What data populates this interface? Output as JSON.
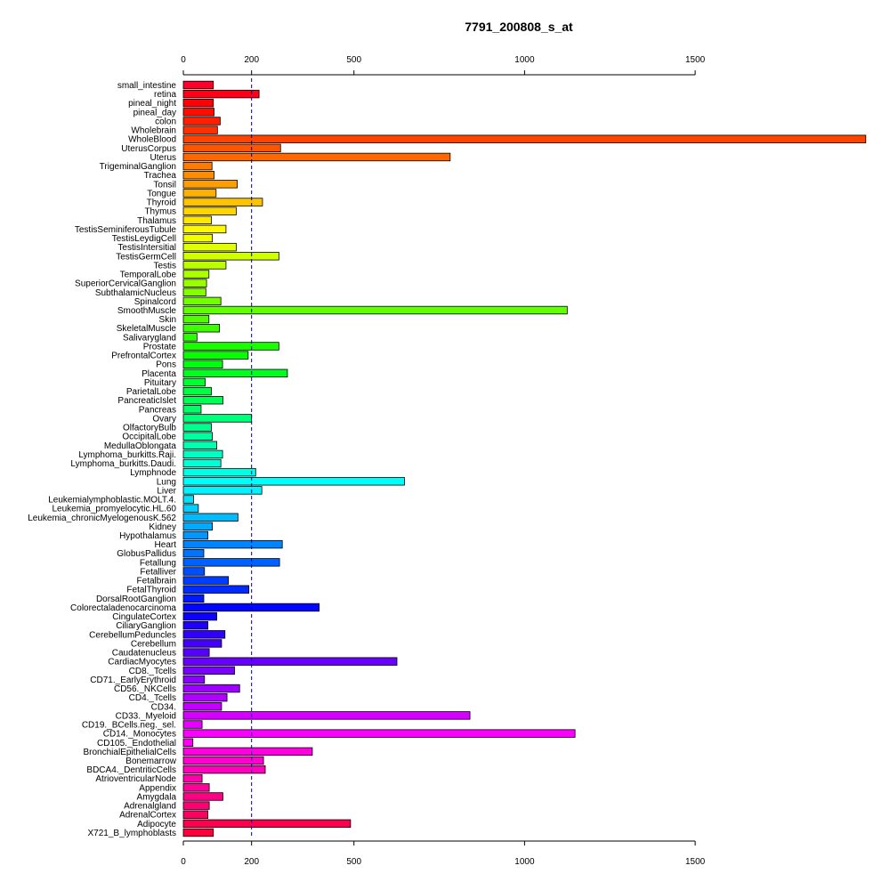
{
  "chart_data": {
    "type": "bar",
    "orientation": "horizontal",
    "title": "7791_200808_s_at",
    "xlim": [
      0,
      2000
    ],
    "xticks": [
      0,
      200,
      500,
      1000,
      1500
    ],
    "reference_line": 200,
    "categories": [
      "small_intestine",
      "retina",
      "pineal_night",
      "pineal_day",
      "colon",
      "Wholebrain",
      "WholeBlood",
      "UterusCorpus",
      "Uterus",
      "TrigeminalGanglion",
      "Trachea",
      "Tonsil",
      "Tongue",
      "Thyroid",
      "Thymus",
      "Thalamus",
      "TestisSeminiferousTubule",
      "TestisLeydigCell",
      "TestisIntersitial",
      "TestisGermCell",
      "Testis",
      "TemporalLobe",
      "SuperiorCervicalGanglion",
      "SubthalamicNucleus",
      "Spinalcord",
      "SmoothMuscle",
      "Skin",
      "SkeletalMuscle",
      "Salivarygland",
      "Prostate",
      "PrefrontalCortex",
      "Pons",
      "Placenta",
      "Pituitary",
      "ParietalLobe",
      "PancreaticIslet",
      "Pancreas",
      "Ovary",
      "OlfactoryBulb",
      "OccipitalLobe",
      "MedullaOblongata",
      "Lymphoma_burkitts.Raji.",
      "Lymphoma_burkitts.Daudi.",
      "Lymphnode",
      "Lung",
      "Liver",
      "Leukemialymphoblastic.MOLT.4.",
      "Leukemia_promyelocytic.HL.60",
      "Leukemia_chronicMyelogenousK.562",
      "Kidney",
      "Hypothalamus",
      "Heart",
      "GlobusPallidus",
      "Fetallung",
      "Fetalliver",
      "Fetalbrain",
      "FetalThyroid",
      "DorsalRootGanglion",
      "Colorectaladenocarcinoma",
      "CingulateCortex",
      "CiliaryGanglion",
      "CerebellumPeduncles",
      "Cerebellum",
      "Caudatenucleus",
      "CardiacMyocytes",
      "CD8._Tcells",
      "CD71._EarlyErythroid",
      "CD56._NKCells",
      "CD4._Tcells",
      "CD34.",
      "CD33._Myeloid",
      "CD19._BCells.neg._sel.",
      "CD14._Monocytes",
      "CD105._Endothelial",
      "BronchialEpithelialCells",
      "Bonemarrow",
      "BDCA4._DentriticCells",
      "AtrioventricularNode",
      "Appendix",
      "Amygdala",
      "Adrenalgland",
      "AdrenalCortex",
      "Adipocyte",
      "X721_B_lymphoblasts"
    ],
    "values": [
      88,
      222,
      88,
      90,
      108,
      100,
      2000,
      285,
      782,
      84,
      90,
      158,
      96,
      232,
      155,
      82,
      125,
      85,
      155,
      280,
      125,
      75,
      68,
      66,
      110,
      1125,
      75,
      106,
      40,
      280,
      190,
      115,
      305,
      64,
      82,
      116,
      52,
      200,
      82,
      85,
      98,
      115,
      110,
      212,
      648,
      230,
      30,
      44,
      160,
      85,
      72,
      290,
      60,
      282,
      62,
      132,
      192,
      60,
      398,
      98,
      72,
      122,
      112,
      76,
      626,
      150,
      62,
      165,
      128,
      112,
      840,
      55,
      1148,
      28,
      378,
      235,
      240,
      55,
      76,
      116,
      76,
      72,
      490,
      88
    ],
    "xlabel": "",
    "ylabel": "",
    "grid": false,
    "legend": "none"
  }
}
